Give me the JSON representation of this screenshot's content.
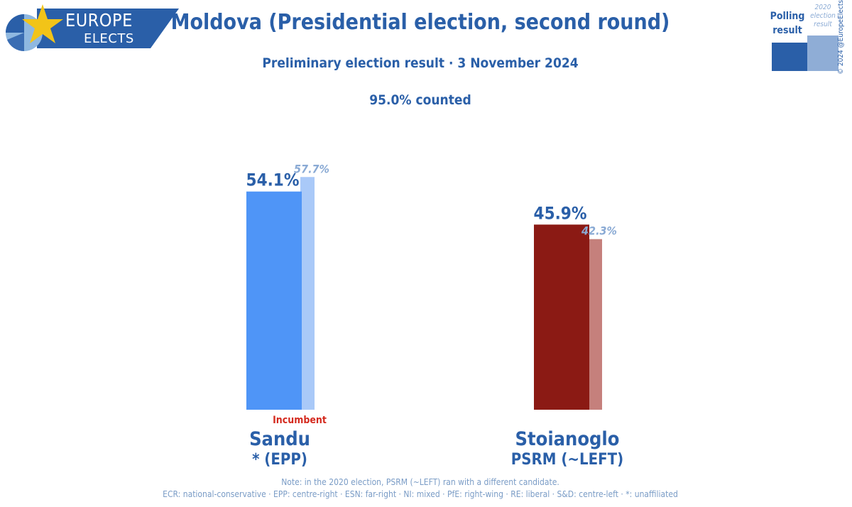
{
  "logo": {
    "line1": "EUROPE",
    "line2": "ELECTS"
  },
  "header": {
    "title": "Moldova (Presidential election, second round)",
    "subtitle": "Preliminary election result · 3 November 2024",
    "counted": "95.0% counted"
  },
  "legend": {
    "current_label_line1": "Polling",
    "current_label_line2": "result",
    "previous_label_line1": "2020",
    "previous_label_line2": "election",
    "previous_label_line3": "result",
    "current_color": "#2a5fa8",
    "previous_color": "#8fadd6"
  },
  "copyright": "© 2024 @EuropeElects",
  "colors": {
    "sandu_current": "#4f95f7",
    "sandu_previous": "#a9c9f8",
    "stoianoglo_current": "#8b1a14",
    "stoianoglo_previous": "#c5807c",
    "incumbent": "#d42a1e"
  },
  "chart_data": {
    "type": "bar",
    "title": "Moldova (Presidential election, second round)",
    "subtitle": "Preliminary election result · 3 November 2024",
    "categories": [
      "Sandu",
      "Stoianoglo"
    ],
    "parties": [
      "* (EPP)",
      "PSRM (~LEFT)"
    ],
    "series": [
      {
        "name": "Polling result",
        "values": [
          54.1,
          45.9
        ],
        "labels": [
          "54.1%",
          "45.9%"
        ]
      },
      {
        "name": "2020 election result",
        "values": [
          57.7,
          42.3
        ],
        "labels": [
          "57.7%",
          "42.3%"
        ]
      }
    ],
    "annotations": {
      "incumbent": "Incumbent"
    },
    "ylim": [
      0,
      60
    ],
    "grid": false,
    "legend_position": "top-right"
  },
  "footer": {
    "note": "Note: in the 2020 election, PSRM (~LEFT) ran with a different candidate.",
    "parties": "ECR: national-conservative · EPP: centre-right · ESN: far-right · NI: mixed · PfE: right-wing · RE: liberal · S&D: centre-left · *: unaffiliated"
  }
}
